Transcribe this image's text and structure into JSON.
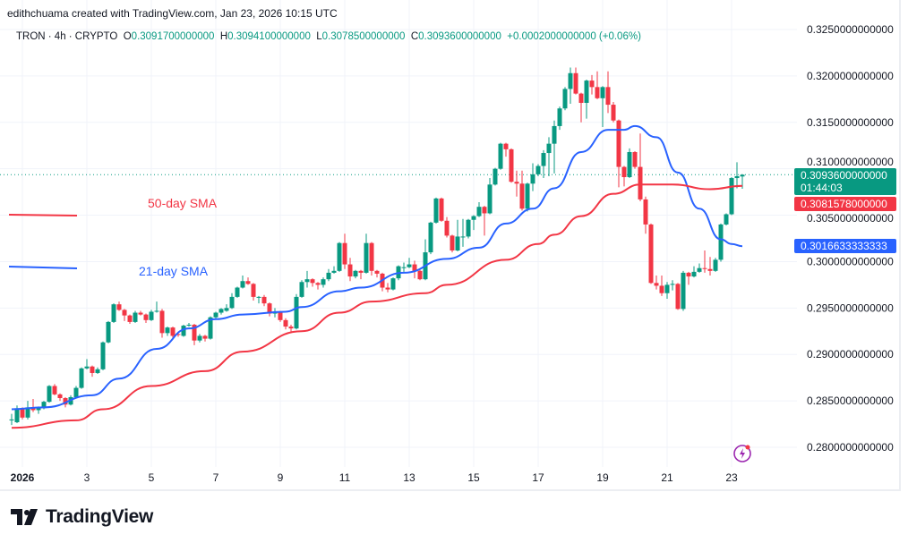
{
  "credit": "edithchuama created with TradingView.com, Jan 23, 2026 10:15 UTC",
  "legend": {
    "symbol": "TRON · 4h · CRYPTO",
    "o_label": "O",
    "o": "0.3091700000000",
    "h_label": "H",
    "h": "0.3094100000000",
    "l_label": "L",
    "l": "0.3078500000000",
    "c_label": "C",
    "c": "0.3093600000000",
    "change": "+0.0002000000000 (+0.06%)"
  },
  "price_tags": {
    "last": "0.3093600000000",
    "countdown": "01:44:03",
    "sma50": "0.3081578000000",
    "sma21": "0.3016633333333"
  },
  "annotations": {
    "sma50": "50-day SMA",
    "sma21": "21-day SMA"
  },
  "colors": {
    "up": "#089981",
    "down": "#f23645",
    "sma21": "#2962ff",
    "sma50": "#f23645",
    "grid": "#f0f3fa"
  },
  "logo": "TradingView",
  "icons": [
    "tradingview-logo-icon",
    "lightning-icon"
  ],
  "chart_data": {
    "type": "candlestick",
    "interval": "4h",
    "ylim": [
      0.28,
      0.325
    ],
    "yticks": [
      "0.3250000000000",
      "0.3200000000000",
      "0.3150000000000",
      "0.3100000000000",
      "0.3050000000000",
      "0.3000000000000",
      "0.2950000000000",
      "0.2900000000000",
      "0.2850000000000",
      "0.2800000000000"
    ],
    "ytick_values": [
      0.325,
      0.32,
      0.315,
      0.31,
      0.305,
      0.3,
      0.295,
      0.29,
      0.285,
      0.28
    ],
    "xticks": [
      "2026",
      "3",
      "5",
      "7",
      "9",
      "11",
      "13",
      "15",
      "17",
      "19",
      "21",
      "23"
    ],
    "xtick_candles": [
      2,
      14,
      26,
      38,
      50,
      62,
      74,
      86,
      98,
      110,
      122,
      134
    ],
    "grid": true,
    "candles": [
      [
        0.2829,
        0.2836,
        0.2824,
        0.283
      ],
      [
        0.2827,
        0.2845,
        0.2826,
        0.2842
      ],
      [
        0.2842,
        0.2843,
        0.283,
        0.2832
      ],
      [
        0.2832,
        0.285,
        0.283,
        0.2843
      ],
      [
        0.2843,
        0.2852,
        0.2838,
        0.284
      ],
      [
        0.284,
        0.2844,
        0.2836,
        0.2842
      ],
      [
        0.2842,
        0.285,
        0.2841,
        0.2849
      ],
      [
        0.2849,
        0.2867,
        0.2848,
        0.2866
      ],
      [
        0.2866,
        0.2868,
        0.2856,
        0.2857
      ],
      [
        0.2857,
        0.2858,
        0.285,
        0.2853
      ],
      [
        0.2853,
        0.2854,
        0.2843,
        0.2846
      ],
      [
        0.2846,
        0.2856,
        0.2845,
        0.2854
      ],
      [
        0.2854,
        0.2866,
        0.2853,
        0.2864
      ],
      [
        0.2864,
        0.2886,
        0.2863,
        0.2885
      ],
      [
        0.2885,
        0.2895,
        0.2884,
        0.2887
      ],
      [
        0.2887,
        0.2888,
        0.2876,
        0.288
      ],
      [
        0.288,
        0.2886,
        0.2879,
        0.2884
      ],
      [
        0.2884,
        0.2914,
        0.2883,
        0.2913
      ],
      [
        0.2913,
        0.2936,
        0.2912,
        0.2935
      ],
      [
        0.2935,
        0.2955,
        0.2934,
        0.2954
      ],
      [
        0.2954,
        0.2957,
        0.2947,
        0.2948
      ],
      [
        0.2948,
        0.2949,
        0.2936,
        0.2942
      ],
      [
        0.2942,
        0.2943,
        0.2933,
        0.2935
      ],
      [
        0.2935,
        0.2947,
        0.2934,
        0.2945
      ],
      [
        0.2945,
        0.2947,
        0.2942,
        0.2943
      ],
      [
        0.2943,
        0.2944,
        0.2934,
        0.2937
      ],
      [
        0.2937,
        0.2948,
        0.2936,
        0.2946
      ],
      [
        0.2946,
        0.2957,
        0.2945,
        0.2947
      ],
      [
        0.2947,
        0.2949,
        0.2918,
        0.2923
      ],
      [
        0.2923,
        0.293,
        0.292,
        0.2929
      ],
      [
        0.2929,
        0.293,
        0.2917,
        0.292
      ],
      [
        0.2922,
        0.2924,
        0.2919,
        0.2921
      ],
      [
        0.292,
        0.2932,
        0.2919,
        0.2931
      ],
      [
        0.2931,
        0.2934,
        0.293,
        0.2932
      ],
      [
        0.2932,
        0.2933,
        0.291,
        0.2915
      ],
      [
        0.2915,
        0.2922,
        0.2913,
        0.292
      ],
      [
        0.292,
        0.2921,
        0.2914,
        0.2917
      ],
      [
        0.2917,
        0.2941,
        0.2916,
        0.294
      ],
      [
        0.294,
        0.2946,
        0.2938,
        0.2945
      ],
      [
        0.2945,
        0.295,
        0.2943,
        0.2949
      ],
      [
        0.2947,
        0.2954,
        0.2946,
        0.295
      ],
      [
        0.295,
        0.2966,
        0.2949,
        0.2962
      ],
      [
        0.2962,
        0.2973,
        0.2961,
        0.2972
      ],
      [
        0.2972,
        0.2985,
        0.2971,
        0.2979
      ],
      [
        0.2979,
        0.2983,
        0.2975,
        0.2976
      ],
      [
        0.2976,
        0.2977,
        0.2958,
        0.2962
      ],
      [
        0.2962,
        0.2963,
        0.2955,
        0.2962
      ],
      [
        0.2962,
        0.2964,
        0.2952,
        0.2955
      ],
      [
        0.2955,
        0.2956,
        0.2941,
        0.2944
      ],
      [
        0.2944,
        0.295,
        0.294,
        0.2946
      ],
      [
        0.2946,
        0.2947,
        0.2935,
        0.2937
      ],
      [
        0.2937,
        0.2939,
        0.2927,
        0.293
      ],
      [
        0.293,
        0.2932,
        0.2923,
        0.2928
      ],
      [
        0.2928,
        0.2965,
        0.2927,
        0.2962
      ],
      [
        0.2962,
        0.298,
        0.2961,
        0.2978
      ],
      [
        0.2978,
        0.299,
        0.2972,
        0.2981
      ],
      [
        0.2981,
        0.2982,
        0.2973,
        0.2977
      ],
      [
        0.2977,
        0.2978,
        0.297,
        0.2975
      ],
      [
        0.2975,
        0.2983,
        0.2972,
        0.2981
      ],
      [
        0.2981,
        0.2992,
        0.2979,
        0.2988
      ],
      [
        0.2988,
        0.2995,
        0.2987,
        0.299
      ],
      [
        0.299,
        0.3021,
        0.2989,
        0.302
      ],
      [
        0.302,
        0.303,
        0.2992,
        0.2997
      ],
      [
        0.2997,
        0.3004,
        0.2979,
        0.2984
      ],
      [
        0.2984,
        0.2991,
        0.2982,
        0.299
      ],
      [
        0.299,
        0.2991,
        0.2981,
        0.2988
      ],
      [
        0.2988,
        0.303,
        0.2987,
        0.302
      ],
      [
        0.302,
        0.3021,
        0.2985,
        0.299
      ],
      [
        0.299,
        0.2991,
        0.2983,
        0.2987
      ],
      [
        0.2987,
        0.2988,
        0.2968,
        0.2972
      ],
      [
        0.2972,
        0.2977,
        0.2967,
        0.297
      ],
      [
        0.297,
        0.2983,
        0.2969,
        0.2982
      ],
      [
        0.2982,
        0.2996,
        0.298,
        0.2995
      ],
      [
        0.2994,
        0.2999,
        0.2989,
        0.2994
      ],
      [
        0.2994,
        0.3004,
        0.2993,
        0.2997
      ],
      [
        0.2997,
        0.3001,
        0.2982,
        0.299
      ],
      [
        0.299,
        0.2991,
        0.298,
        0.2981
      ],
      [
        0.2981,
        0.3024,
        0.298,
        0.301
      ],
      [
        0.301,
        0.3043,
        0.3008,
        0.3042
      ],
      [
        0.3042,
        0.3069,
        0.3041,
        0.3068
      ],
      [
        0.3068,
        0.3069,
        0.3043,
        0.3044
      ],
      [
        0.3044,
        0.3048,
        0.3026,
        0.3028
      ],
      [
        0.3028,
        0.3029,
        0.301,
        0.3012
      ],
      [
        0.3012,
        0.3045,
        0.3011,
        0.3027
      ],
      [
        0.3027,
        0.3046,
        0.3016,
        0.3027
      ],
      [
        0.3027,
        0.3046,
        0.3025,
        0.3045
      ],
      [
        0.3045,
        0.305,
        0.3034,
        0.3049
      ],
      [
        0.3049,
        0.3064,
        0.3048,
        0.3059
      ],
      [
        0.3059,
        0.306,
        0.3028,
        0.3052
      ],
      [
        0.3052,
        0.309,
        0.3051,
        0.3083
      ],
      [
        0.3083,
        0.3101,
        0.3082,
        0.31
      ],
      [
        0.31,
        0.3128,
        0.3099,
        0.3127
      ],
      [
        0.3127,
        0.3128,
        0.3113,
        0.3121
      ],
      [
        0.3121,
        0.3122,
        0.3085,
        0.3086
      ],
      [
        0.3086,
        0.3098,
        0.307,
        0.3084
      ],
      [
        0.3084,
        0.3098,
        0.3055,
        0.3057
      ],
      [
        0.3057,
        0.3085,
        0.3054,
        0.3084
      ],
      [
        0.3084,
        0.3106,
        0.3076,
        0.3094
      ],
      [
        0.3094,
        0.3105,
        0.3092,
        0.3103
      ],
      [
        0.3103,
        0.312,
        0.309,
        0.3117
      ],
      [
        0.3117,
        0.3134,
        0.3092,
        0.3127
      ],
      [
        0.3127,
        0.3152,
        0.3095,
        0.3146
      ],
      [
        0.3146,
        0.3167,
        0.3142,
        0.3165
      ],
      [
        0.3165,
        0.3188,
        0.3163,
        0.3186
      ],
      [
        0.3186,
        0.3209,
        0.317,
        0.3203
      ],
      [
        0.3203,
        0.3209,
        0.318,
        0.3181
      ],
      [
        0.3181,
        0.3182,
        0.315,
        0.3171
      ],
      [
        0.3171,
        0.3196,
        0.3154,
        0.3195
      ],
      [
        0.3195,
        0.3201,
        0.318,
        0.3188
      ],
      [
        0.3188,
        0.3205,
        0.3175,
        0.3176
      ],
      [
        0.3176,
        0.3189,
        0.3145,
        0.3188
      ],
      [
        0.3188,
        0.3205,
        0.316,
        0.3169
      ],
      [
        0.3169,
        0.3172,
        0.315,
        0.3152
      ],
      [
        0.3152,
        0.3153,
        0.308,
        0.3102
      ],
      [
        0.3102,
        0.3103,
        0.3081,
        0.3091
      ],
      [
        0.3091,
        0.3122,
        0.309,
        0.3118
      ],
      [
        0.3118,
        0.3119,
        0.31,
        0.3102
      ],
      [
        0.3102,
        0.3138,
        0.3065,
        0.3067
      ],
      [
        0.3067,
        0.307,
        0.303,
        0.304
      ],
      [
        0.304,
        0.3041,
        0.2976,
        0.2977
      ],
      [
        0.2977,
        0.2985,
        0.297,
        0.2974
      ],
      [
        0.2974,
        0.2985,
        0.2963,
        0.2966
      ],
      [
        0.2966,
        0.2978,
        0.296,
        0.2975
      ],
      [
        0.2975,
        0.298,
        0.2969,
        0.2976
      ],
      [
        0.2976,
        0.2977,
        0.2948,
        0.2949
      ],
      [
        0.2949,
        0.299,
        0.2947,
        0.2988
      ],
      [
        0.2988,
        0.2989,
        0.2975,
        0.2984
      ],
      [
        0.2984,
        0.2995,
        0.2983,
        0.2989
      ],
      [
        0.2989,
        0.2998,
        0.2988,
        0.2993
      ],
      [
        0.2993,
        0.3012,
        0.2988,
        0.2992
      ],
      [
        0.2992,
        0.3005,
        0.2985,
        0.299
      ],
      [
        0.299,
        0.3004,
        0.2989,
        0.3002
      ],
      [
        0.3002,
        0.3041,
        0.3,
        0.304
      ],
      [
        0.304,
        0.3052,
        0.3039,
        0.3051
      ],
      [
        0.3051,
        0.3091,
        0.305,
        0.309
      ],
      [
        0.309,
        0.3107,
        0.3079,
        0.3092
      ],
      [
        0.30917,
        0.30941,
        0.30785,
        0.30936
      ]
    ],
    "series": [
      {
        "name": "21-day SMA",
        "points": [
          [
            0,
            0.2841
          ],
          [
            6,
            0.2843
          ],
          [
            15,
            0.2856
          ],
          [
            20,
            0.2874
          ],
          [
            27,
            0.2906
          ],
          [
            33,
            0.2928
          ],
          [
            38,
            0.2938
          ],
          [
            43,
            0.2943
          ],
          [
            51,
            0.2946
          ],
          [
            54,
            0.2951
          ],
          [
            61,
            0.2968
          ],
          [
            65,
            0.2972
          ],
          [
            73,
            0.2988
          ],
          [
            81,
            0.3003
          ],
          [
            87,
            0.3015
          ],
          [
            92,
            0.3041
          ],
          [
            97,
            0.3057
          ],
          [
            101,
            0.3079
          ],
          [
            106,
            0.3118
          ],
          [
            111,
            0.3142
          ],
          [
            114,
            0.3142
          ],
          [
            116,
            0.3146
          ],
          [
            120,
            0.3134
          ],
          [
            124,
            0.3096
          ],
          [
            128,
            0.3057
          ],
          [
            132,
            0.3024
          ],
          [
            134,
            0.3019
          ],
          [
            136,
            0.30166
          ]
        ]
      },
      {
        "name": "50-day SMA",
        "points": [
          [
            0,
            0.2821
          ],
          [
            12,
            0.2829
          ],
          [
            17,
            0.2841
          ],
          [
            26,
            0.2866
          ],
          [
            36,
            0.2882
          ],
          [
            43,
            0.2903
          ],
          [
            54,
            0.2925
          ],
          [
            61,
            0.2945
          ],
          [
            67,
            0.2957
          ],
          [
            77,
            0.2966
          ],
          [
            81,
            0.2975
          ],
          [
            92,
            0.3002
          ],
          [
            98,
            0.3019
          ],
          [
            101,
            0.3029
          ],
          [
            106,
            0.3049
          ],
          [
            112,
            0.3073
          ],
          [
            117,
            0.3083
          ],
          [
            123,
            0.3083
          ],
          [
            130,
            0.3078
          ],
          [
            136,
            0.30816
          ]
        ]
      }
    ],
    "last_price": 0.30936
  }
}
